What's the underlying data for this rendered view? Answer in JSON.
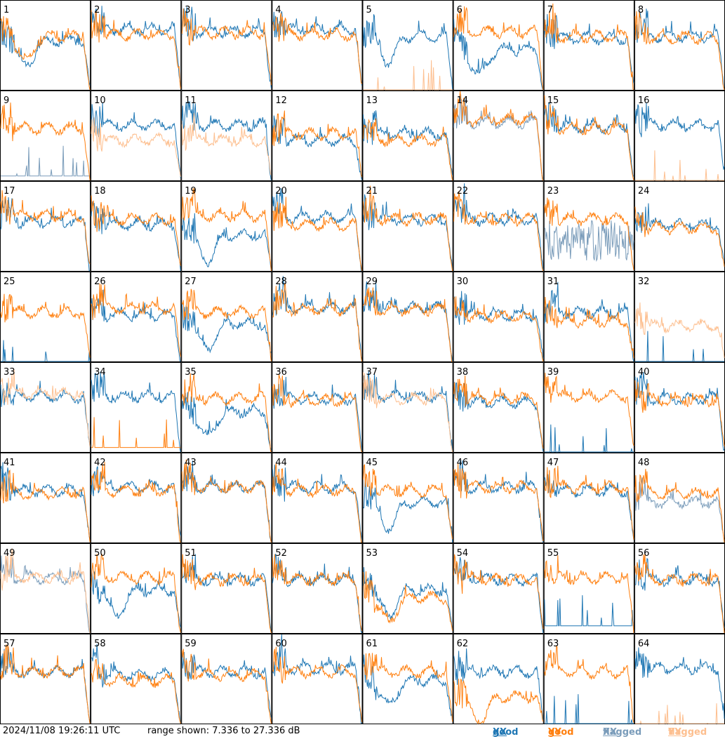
{
  "footer": {
    "timestamp": "2024/11/08 19:26:11 UTC",
    "range": "range shown: 7.336 to 27.336 dB"
  },
  "legend": [
    {
      "label": "good",
      "pol": "XX",
      "color": "#1f77b4"
    },
    {
      "label": "good",
      "pol": "YY",
      "color": "#ff7f0e"
    },
    {
      "label": "flagged",
      "pol": "XX",
      "color": "#7a9cba"
    },
    {
      "label": "flagged",
      "pol": "YY",
      "color": "#fdbf8f"
    }
  ],
  "colors": {
    "good_xx": "#1f77b4",
    "good_yy": "#ff7f0e",
    "flagged_xx": "#7a9cba",
    "flagged_yy": "#fdbf8f"
  },
  "chart_data": {
    "type": "line",
    "ylim_db": [
      7.336,
      27.336
    ],
    "grid_layout": "8x8",
    "panels": [
      {
        "id": "1",
        "xx": "good",
        "yy": "good",
        "xx_level": 0.55,
        "yy_level": 0.6,
        "xx_shape": "dip",
        "yy_shape": "dip"
      },
      {
        "id": "2",
        "xx": "good",
        "yy": "good",
        "xx_level": 0.68,
        "yy_level": 0.62,
        "xx_shape": "normal",
        "yy_shape": "normal"
      },
      {
        "id": "3",
        "xx": "good",
        "yy": "good",
        "xx_level": 0.65,
        "yy_level": 0.64,
        "xx_shape": "normal",
        "yy_shape": "normal"
      },
      {
        "id": "4",
        "xx": "good",
        "yy": "good",
        "xx_level": 0.68,
        "yy_level": 0.62,
        "xx_shape": "normal",
        "yy_shape": "normal"
      },
      {
        "id": "5",
        "xx": "good",
        "yy": "flagged",
        "xx_level": 0.6,
        "yy_level": 0.0,
        "xx_shape": "dip",
        "yy_shape": "flat"
      },
      {
        "id": "6",
        "xx": "good",
        "yy": "good",
        "xx_level": 0.45,
        "yy_level": 0.65,
        "xx_shape": "dip",
        "yy_shape": "normal"
      },
      {
        "id": "7",
        "xx": "good",
        "yy": "good",
        "xx_level": 0.58,
        "yy_level": 0.6,
        "xx_shape": "normal",
        "yy_shape": "normal"
      },
      {
        "id": "8",
        "xx": "good",
        "yy": "good",
        "xx_level": 0.6,
        "yy_level": 0.58,
        "xx_shape": "normal",
        "yy_shape": "normal"
      },
      {
        "id": "9",
        "xx": "flagged",
        "yy": "good",
        "xx_level": 0.05,
        "yy_level": 0.58,
        "xx_shape": "flat",
        "yy_shape": "normal"
      },
      {
        "id": "10",
        "xx": "good",
        "yy": "flagged",
        "xx_level": 0.62,
        "yy_level": 0.45,
        "xx_shape": "normal",
        "yy_shape": "normal"
      },
      {
        "id": "11",
        "xx": "good",
        "yy": "flagged",
        "xx_level": 0.62,
        "yy_level": 0.45,
        "xx_shape": "normal",
        "yy_shape": "normal"
      },
      {
        "id": "12",
        "xx": "good",
        "yy": "good",
        "xx_level": 0.45,
        "yy_level": 0.52,
        "xx_shape": "normal",
        "yy_shape": "normal"
      },
      {
        "id": "13",
        "xx": "good",
        "yy": "good",
        "xx_level": 0.52,
        "yy_level": 0.45,
        "xx_shape": "normal",
        "yy_shape": "normal"
      },
      {
        "id": "14",
        "xx": "flagged",
        "yy": "good",
        "xx_level": 0.65,
        "yy_level": 0.68,
        "xx_shape": "normal",
        "yy_shape": "normal"
      },
      {
        "id": "15",
        "xx": "good",
        "yy": "good",
        "xx_level": 0.6,
        "yy_level": 0.58,
        "xx_shape": "normal",
        "yy_shape": "normal"
      },
      {
        "id": "16",
        "xx": "good",
        "yy": "flagged",
        "xx_level": 0.62,
        "yy_level": 0.0,
        "xx_shape": "normal",
        "yy_shape": "flat"
      },
      {
        "id": "17",
        "xx": "good",
        "yy": "good",
        "xx_level": 0.55,
        "yy_level": 0.62,
        "xx_shape": "normal",
        "yy_shape": "normal"
      },
      {
        "id": "18",
        "xx": "good",
        "yy": "good",
        "xx_level": 0.52,
        "yy_level": 0.58,
        "xx_shape": "normal",
        "yy_shape": "normal"
      },
      {
        "id": "19",
        "xx": "good",
        "yy": "good",
        "xx_level": 0.4,
        "yy_level": 0.62,
        "xx_shape": "dip",
        "yy_shape": "normal"
      },
      {
        "id": "20",
        "xx": "good",
        "yy": "good",
        "xx_level": 0.6,
        "yy_level": 0.52,
        "xx_shape": "normal",
        "yy_shape": "normal"
      },
      {
        "id": "21",
        "xx": "good",
        "yy": "good",
        "xx_level": 0.58,
        "yy_level": 0.58,
        "xx_shape": "normal",
        "yy_shape": "normal"
      },
      {
        "id": "22",
        "xx": "good",
        "yy": "good",
        "xx_level": 0.58,
        "yy_level": 0.58,
        "xx_shape": "normal",
        "yy_shape": "normal"
      },
      {
        "id": "23",
        "xx": "flagged",
        "yy": "good",
        "xx_level": 0.25,
        "yy_level": 0.58,
        "xx_shape": "noisy",
        "yy_shape": "normal"
      },
      {
        "id": "24",
        "xx": "good",
        "yy": "good",
        "xx_level": 0.52,
        "yy_level": 0.48,
        "xx_shape": "normal",
        "yy_shape": "normal"
      },
      {
        "id": "25",
        "xx": "good",
        "yy": "good",
        "xx_level": 0.0,
        "yy_level": 0.55,
        "xx_shape": "flat",
        "yy_shape": "normal"
      },
      {
        "id": "26",
        "xx": "good",
        "yy": "good",
        "xx_level": 0.52,
        "yy_level": 0.6,
        "xx_shape": "normal",
        "yy_shape": "normal"
      },
      {
        "id": "27",
        "xx": "good",
        "yy": "good",
        "xx_level": 0.42,
        "yy_level": 0.55,
        "xx_shape": "dip",
        "yy_shape": "normal"
      },
      {
        "id": "28",
        "xx": "good",
        "yy": "good",
        "xx_level": 0.6,
        "yy_level": 0.58,
        "xx_shape": "normal",
        "yy_shape": "normal"
      },
      {
        "id": "29",
        "xx": "good",
        "yy": "good",
        "xx_level": 0.6,
        "yy_level": 0.58,
        "xx_shape": "normal",
        "yy_shape": "normal"
      },
      {
        "id": "30",
        "xx": "good",
        "yy": "good",
        "xx_level": 0.52,
        "yy_level": 0.5,
        "xx_shape": "normal",
        "yy_shape": "normal"
      },
      {
        "id": "31",
        "xx": "good",
        "yy": "good",
        "xx_level": 0.55,
        "yy_level": 0.45,
        "xx_shape": "normal",
        "yy_shape": "normal"
      },
      {
        "id": "32",
        "xx": "good",
        "yy": "flagged",
        "xx_level": 0.0,
        "yy_level": 0.4,
        "xx_shape": "flat",
        "yy_shape": "normal"
      },
      {
        "id": "33",
        "xx": "good",
        "yy": "flagged",
        "xx_level": 0.62,
        "yy_level": 0.65,
        "xx_shape": "normal",
        "yy_shape": "normal"
      },
      {
        "id": "34",
        "xx": "good",
        "yy": "good",
        "xx_level": 0.62,
        "yy_level": 0.05,
        "xx_shape": "normal",
        "yy_shape": "flat"
      },
      {
        "id": "35",
        "xx": "good",
        "yy": "good",
        "xx_level": 0.45,
        "yy_level": 0.6,
        "xx_shape": "dip",
        "yy_shape": "normal"
      },
      {
        "id": "36",
        "xx": "good",
        "yy": "good",
        "xx_level": 0.6,
        "yy_level": 0.58,
        "xx_shape": "normal",
        "yy_shape": "normal"
      },
      {
        "id": "37",
        "xx": "good",
        "yy": "flagged",
        "xx_level": 0.62,
        "yy_level": 0.6,
        "xx_shape": "normal",
        "yy_shape": "normal"
      },
      {
        "id": "38",
        "xx": "good",
        "yy": "good",
        "xx_level": 0.55,
        "yy_level": 0.6,
        "xx_shape": "normal",
        "yy_shape": "normal"
      },
      {
        "id": "39",
        "xx": "good",
        "yy": "good",
        "xx_level": 0.0,
        "yy_level": 0.62,
        "xx_shape": "flat",
        "yy_shape": "normal"
      },
      {
        "id": "40",
        "xx": "good",
        "yy": "good",
        "xx_level": 0.6,
        "yy_level": 0.58,
        "xx_shape": "normal",
        "yy_shape": "normal"
      },
      {
        "id": "41",
        "xx": "good",
        "yy": "good",
        "xx_level": 0.58,
        "yy_level": 0.55,
        "xx_shape": "normal",
        "yy_shape": "normal"
      },
      {
        "id": "42",
        "xx": "good",
        "yy": "good",
        "xx_level": 0.62,
        "yy_level": 0.58,
        "xx_shape": "normal",
        "yy_shape": "normal"
      },
      {
        "id": "43",
        "xx": "good",
        "yy": "good",
        "xx_level": 0.62,
        "yy_level": 0.62,
        "xx_shape": "normal",
        "yy_shape": "normal"
      },
      {
        "id": "44",
        "xx": "good",
        "yy": "good",
        "xx_level": 0.62,
        "yy_level": 0.58,
        "xx_shape": "normal",
        "yy_shape": "normal"
      },
      {
        "id": "45",
        "xx": "good",
        "yy": "good",
        "xx_level": 0.45,
        "yy_level": 0.58,
        "xx_shape": "dip",
        "yy_shape": "normal"
      },
      {
        "id": "46",
        "xx": "good",
        "yy": "good",
        "xx_level": 0.62,
        "yy_level": 0.62,
        "xx_shape": "normal",
        "yy_shape": "normal"
      },
      {
        "id": "47",
        "xx": "good",
        "yy": "good",
        "xx_level": 0.58,
        "yy_level": 0.62,
        "xx_shape": "normal",
        "yy_shape": "normal"
      },
      {
        "id": "48",
        "xx": "flagged",
        "yy": "good",
        "xx_level": 0.45,
        "yy_level": 0.55,
        "xx_shape": "normal",
        "yy_shape": "normal"
      },
      {
        "id": "49",
        "xx": "flagged",
        "yy": "flagged",
        "xx_level": 0.62,
        "yy_level": 0.62,
        "xx_shape": "normal",
        "yy_shape": "normal"
      },
      {
        "id": "50",
        "xx": "good",
        "yy": "good",
        "xx_level": 0.48,
        "yy_level": 0.62,
        "xx_shape": "dip",
        "yy_shape": "normal"
      },
      {
        "id": "51",
        "xx": "good",
        "yy": "good",
        "xx_level": 0.6,
        "yy_level": 0.6,
        "xx_shape": "normal",
        "yy_shape": "normal"
      },
      {
        "id": "52",
        "xx": "good",
        "yy": "good",
        "xx_level": 0.6,
        "yy_level": 0.6,
        "xx_shape": "normal",
        "yy_shape": "normal"
      },
      {
        "id": "53",
        "xx": "good",
        "yy": "good",
        "xx_level": 0.48,
        "yy_level": 0.4,
        "xx_shape": "dip",
        "yy_shape": "dip"
      },
      {
        "id": "54",
        "xx": "good",
        "yy": "good",
        "xx_level": 0.6,
        "yy_level": 0.6,
        "xx_shape": "normal",
        "yy_shape": "normal"
      },
      {
        "id": "55",
        "xx": "good",
        "yy": "good",
        "xx_level": 0.08,
        "yy_level": 0.62,
        "xx_shape": "flat",
        "yy_shape": "normal"
      },
      {
        "id": "56",
        "xx": "good",
        "yy": "good",
        "xx_level": 0.6,
        "yy_level": 0.6,
        "xx_shape": "normal",
        "yy_shape": "normal"
      },
      {
        "id": "57",
        "xx": "good",
        "yy": "good",
        "xx_level": 0.58,
        "yy_level": 0.58,
        "xx_shape": "normal",
        "yy_shape": "normal"
      },
      {
        "id": "58",
        "xx": "good",
        "yy": "good",
        "xx_level": 0.55,
        "yy_level": 0.48,
        "xx_shape": "normal",
        "yy_shape": "normal"
      },
      {
        "id": "59",
        "xx": "good",
        "yy": "good",
        "xx_level": 0.58,
        "yy_level": 0.55,
        "xx_shape": "normal",
        "yy_shape": "normal"
      },
      {
        "id": "60",
        "xx": "good",
        "yy": "good",
        "xx_level": 0.62,
        "yy_level": 0.58,
        "xx_shape": "normal",
        "yy_shape": "normal"
      },
      {
        "id": "61",
        "xx": "good",
        "yy": "good",
        "xx_level": 0.48,
        "yy_level": 0.58,
        "xx_shape": "dip",
        "yy_shape": "normal"
      },
      {
        "id": "62",
        "xx": "good",
        "yy": "good",
        "xx_level": 0.58,
        "yy_level": 0.3,
        "xx_shape": "normal",
        "yy_shape": "dip"
      },
      {
        "id": "63",
        "xx": "good",
        "yy": "good",
        "xx_level": 0.0,
        "yy_level": 0.58,
        "xx_shape": "flat",
        "yy_shape": "normal"
      },
      {
        "id": "64",
        "xx": "good",
        "yy": "flagged",
        "xx_level": 0.62,
        "yy_level": 0.0,
        "xx_shape": "normal",
        "yy_shape": "flat"
      }
    ]
  }
}
